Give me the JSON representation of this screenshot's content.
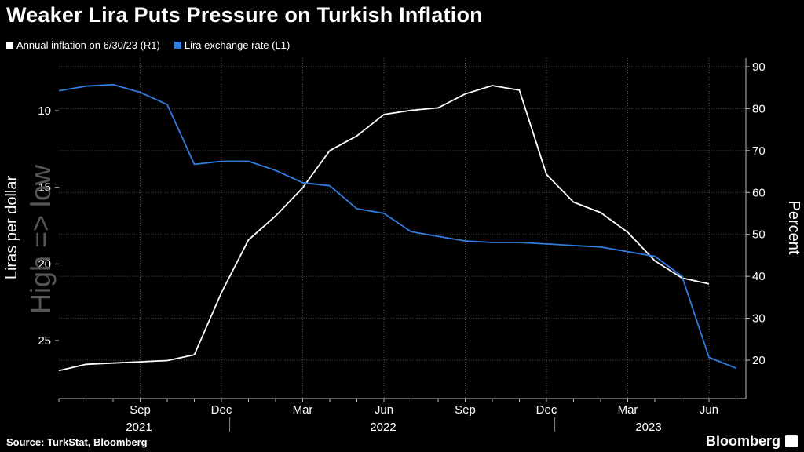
{
  "title": "Weaker Lira Puts Pressure on Turkish Inflation",
  "source": "Source: TurkStat, Bloomberg",
  "brand": "Bloomberg",
  "colors": {
    "lira": "#2f7de1",
    "inflation": "#ffffff",
    "grid": "#555555"
  },
  "legend": [
    {
      "label": "Annual inflation on 6/30/23 (R1)",
      "color": "#ffffff"
    },
    {
      "label": "Lira exchange rate (L1)",
      "color": "#2f7de1"
    }
  ],
  "chart_data": {
    "type": "line",
    "ylabel_left": "Liras per dollar",
    "ylabel_right": "Percent",
    "annotation": "High => low",
    "y_left": {
      "inverted": true,
      "ticks": [
        10,
        15,
        20,
        25
      ]
    },
    "y_right": {
      "ticks": [
        20,
        30,
        40,
        50,
        60,
        70,
        80,
        90
      ]
    },
    "x_tick_labels": [
      "Sep",
      "Dec",
      "Mar",
      "Jun",
      "Sep",
      "Dec",
      "Mar",
      "Jun"
    ],
    "year_labels": [
      "2021",
      "2022",
      "2023"
    ],
    "series": [
      {
        "name": "Annual inflation on 6/30/23 (R1)",
        "axis": "right",
        "x": [
          "2021-06",
          "2021-07",
          "2021-08",
          "2021-09",
          "2021-10",
          "2021-11",
          "2021-12",
          "2022-01",
          "2022-02",
          "2022-03",
          "2022-04",
          "2022-05",
          "2022-06",
          "2022-07",
          "2022-08",
          "2022-09",
          "2022-10",
          "2022-11",
          "2022-12",
          "2023-01",
          "2023-02",
          "2023-03",
          "2023-04",
          "2023-05",
          "2023-06"
        ],
        "values": [
          17.5,
          19.0,
          19.3,
          19.6,
          19.9,
          21.3,
          36.1,
          48.7,
          54.4,
          61.1,
          70.0,
          73.5,
          78.6,
          79.6,
          80.2,
          83.5,
          85.5,
          84.4,
          64.3,
          57.7,
          55.2,
          50.5,
          43.7,
          39.6,
          38.2
        ]
      },
      {
        "name": "Lira exchange rate (L1)",
        "axis": "left",
        "x": [
          "2021-06",
          "2021-07",
          "2021-08",
          "2021-09",
          "2021-10",
          "2021-11",
          "2021-12",
          "2022-01",
          "2022-02",
          "2022-03",
          "2022-04",
          "2022-05",
          "2022-06",
          "2022-07",
          "2022-08",
          "2022-09",
          "2022-10",
          "2022-11",
          "2022-12",
          "2023-01",
          "2023-02",
          "2023-03",
          "2023-04",
          "2023-05",
          "2023-06",
          "2023-07"
        ],
        "values": [
          8.7,
          8.4,
          8.3,
          8.8,
          9.6,
          13.5,
          13.3,
          13.3,
          13.9,
          14.7,
          14.9,
          16.4,
          16.7,
          17.9,
          18.2,
          18.5,
          18.6,
          18.6,
          18.7,
          18.8,
          18.9,
          19.2,
          19.5,
          20.8,
          26.1,
          26.8
        ]
      }
    ]
  }
}
